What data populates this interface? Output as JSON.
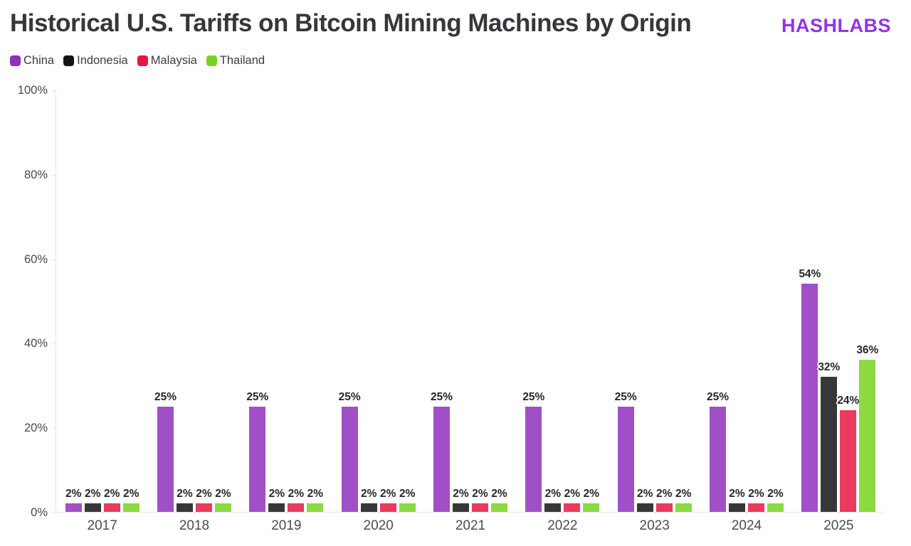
{
  "header": {
    "title": "Historical U.S. Tariffs on Bitcoin Mining Machines by Origin",
    "logo": "HASHLABS",
    "logo_color": "#9333ea"
  },
  "chart_data": {
    "type": "bar",
    "title": "Historical U.S. Tariffs on Bitcoin Mining Machines by Origin",
    "categories": [
      "2017",
      "2018",
      "2019",
      "2020",
      "2021",
      "2022",
      "2023",
      "2024",
      "2025"
    ],
    "series": [
      {
        "name": "China",
        "color": "#9030bd",
        "values": [
          2,
          25,
          25,
          25,
          25,
          25,
          25,
          25,
          54
        ]
      },
      {
        "name": "Indonesia",
        "color": "#141414",
        "values": [
          2,
          2,
          2,
          2,
          2,
          2,
          2,
          2,
          32
        ]
      },
      {
        "name": "Malaysia",
        "color": "#e61741",
        "values": [
          2,
          2,
          2,
          2,
          2,
          2,
          2,
          2,
          24
        ]
      },
      {
        "name": "Thailand",
        "color": "#77d321",
        "values": [
          2,
          2,
          2,
          2,
          2,
          2,
          2,
          2,
          36
        ]
      }
    ],
    "xlabel": "",
    "ylabel": "",
    "ylim": [
      0,
      100
    ],
    "ytick_values": [
      0,
      20,
      40,
      60,
      80,
      100
    ],
    "ytick_labels": [
      "0%",
      "20%",
      "40%",
      "60%",
      "80%",
      "100%"
    ],
    "value_label_suffix": "%",
    "bar_value_labels": true,
    "legend_position": "top-left",
    "grid": false
  }
}
